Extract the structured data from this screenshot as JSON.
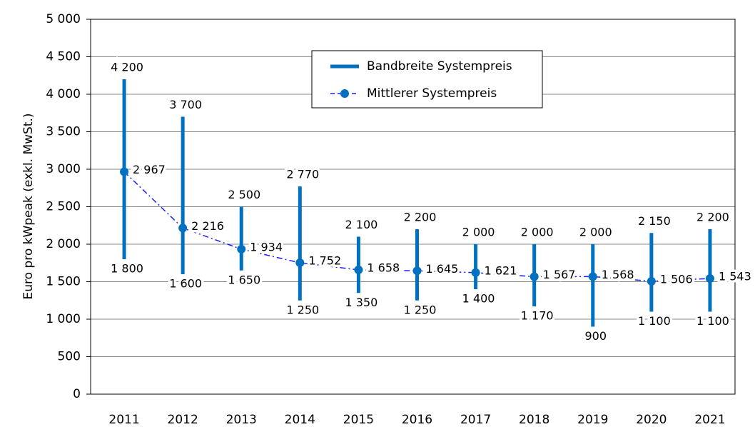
{
  "chart_data": {
    "type": "range_line",
    "y_label": "Euro pro kWpeak  (exkl. MwSt.)",
    "categories": [
      "2011",
      "2012",
      "2013",
      "2014",
      "2015",
      "2016",
      "2017",
      "2018",
      "2019",
      "2020",
      "2021"
    ],
    "series": [
      {
        "name": "Bandbreite Systempreis",
        "color": "#0070c0",
        "high": [
          4200,
          3700,
          2500,
          2770,
          2100,
          2200,
          2000,
          2000,
          2000,
          2150,
          2200
        ],
        "high_labels": [
          "4 200",
          "3 700",
          "2 500",
          "2 770",
          "2 100",
          "2 200",
          "2 000",
          "2 000",
          "2 000",
          "2 150",
          "2 200"
        ],
        "low": [
          1800,
          1600,
          1650,
          1250,
          1350,
          1250,
          1400,
          1170,
          900,
          1100,
          1100
        ],
        "low_labels": [
          "1 800",
          "1 600",
          "1 650",
          "1 250",
          "1 350",
          "1 250",
          "1 400",
          "1 170",
          "900",
          "1 100",
          "1 100"
        ]
      },
      {
        "name": "Mittlerer Systempreis",
        "color": "#0070c0",
        "line_color": "#1a1aff",
        "values": [
          2967,
          2216,
          1934,
          1752,
          1658,
          1645,
          1621,
          1567,
          1568,
          1506,
          1543
        ],
        "value_labels": [
          "2 967",
          "2 216",
          "1 934",
          "1 752",
          "1 658",
          "1 645",
          "1 621",
          "1 567",
          "1 568",
          "1 506",
          "1 543"
        ]
      }
    ],
    "ylim": [
      0,
      5000
    ],
    "yticks": [
      0,
      500,
      {
        "value": 1000,
        "label": "1 000"
      },
      {
        "value": 1500,
        "label": "1 500"
      },
      {
        "value": 2000,
        "label": "2 000"
      },
      {
        "value": 2500,
        "label": "2 500"
      },
      {
        "value": 3000,
        "label": "3 000"
      },
      {
        "value": 3500,
        "label": "3 500"
      },
      {
        "value": 4000,
        "label": "4 000"
      },
      {
        "value": 4500,
        "label": "4 500"
      },
      {
        "value": 5000,
        "label": "5 000"
      }
    ],
    "grid": true
  }
}
